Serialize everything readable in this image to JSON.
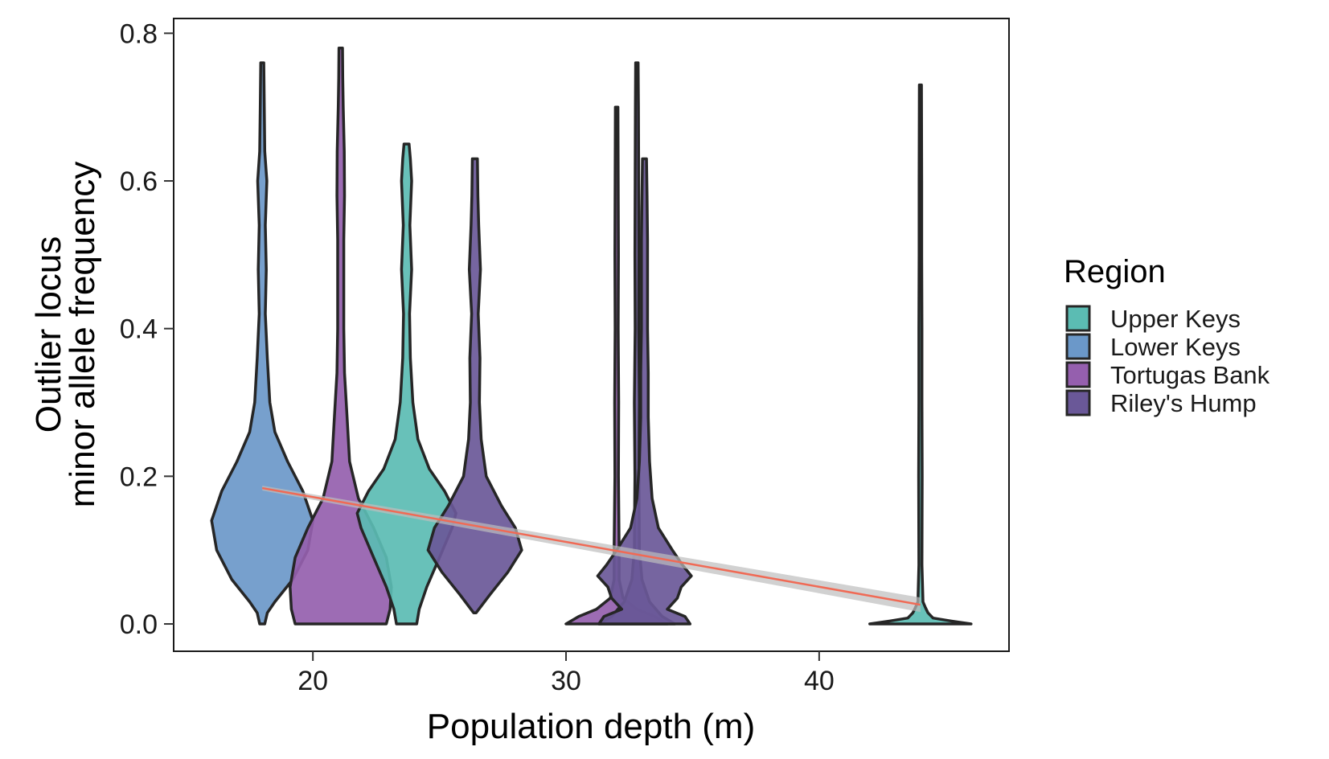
{
  "chart_data": {
    "type": "violin",
    "xlabel": "Population depth (m)",
    "ylabel_lines": [
      "Outlier locus",
      "minor allele frequency"
    ],
    "xlim": [
      14.5,
      47.5
    ],
    "ylim": [
      -0.037,
      0.82
    ],
    "x_ticks": [
      20,
      30,
      40
    ],
    "y_ticks": [
      0.0,
      0.2,
      0.4,
      0.6,
      0.8
    ],
    "y_tick_labels": [
      "0.0",
      "0.2",
      "0.4",
      "0.6",
      "0.8"
    ],
    "grid": false,
    "legend": {
      "title": "Region",
      "placement": "right",
      "entries": [
        {
          "label": "Upper Keys",
          "color": "#5bbcb3"
        },
        {
          "label": "Lower Keys",
          "color": "#6b98c9"
        },
        {
          "label": "Tortugas Bank",
          "color": "#955fae"
        },
        {
          "label": "Riley's Hump",
          "color": "#6a5898"
        }
      ]
    },
    "outline_color": "#262626",
    "violins": [
      {
        "region": "Lower Keys",
        "depth": 18,
        "profile": [
          [
            0,
            0.1
          ],
          [
            0.015,
            0.2
          ],
          [
            0.03,
            0.5
          ],
          [
            0.06,
            1.2
          ],
          [
            0.1,
            1.8
          ],
          [
            0.14,
            2.0
          ],
          [
            0.18,
            1.6
          ],
          [
            0.22,
            1.0
          ],
          [
            0.26,
            0.5
          ],
          [
            0.3,
            0.3
          ],
          [
            0.36,
            0.2
          ],
          [
            0.42,
            0.12
          ],
          [
            0.48,
            0.16
          ],
          [
            0.54,
            0.12
          ],
          [
            0.6,
            0.18
          ],
          [
            0.64,
            0.1
          ],
          [
            0.7,
            0.08
          ],
          [
            0.76,
            0.06
          ]
        ]
      },
      {
        "region": "Tortugas Bank",
        "depth": 21.1,
        "profile": [
          [
            0,
            1.8
          ],
          [
            0.02,
            1.95
          ],
          [
            0.05,
            2.0
          ],
          [
            0.09,
            1.8
          ],
          [
            0.13,
            1.3
          ],
          [
            0.17,
            0.7
          ],
          [
            0.22,
            0.35
          ],
          [
            0.28,
            0.25
          ],
          [
            0.34,
            0.15
          ],
          [
            0.4,
            0.12
          ],
          [
            0.46,
            0.12
          ],
          [
            0.52,
            0.12
          ],
          [
            0.58,
            0.15
          ],
          [
            0.64,
            0.14
          ],
          [
            0.7,
            0.1
          ],
          [
            0.74,
            0.08
          ],
          [
            0.78,
            0.07
          ]
        ]
      },
      {
        "region": "Upper Keys",
        "depth": 23.7,
        "profile": [
          [
            0,
            0.4
          ],
          [
            0.02,
            0.5
          ],
          [
            0.05,
            0.8
          ],
          [
            0.09,
            1.3
          ],
          [
            0.13,
            1.8
          ],
          [
            0.15,
            1.95
          ],
          [
            0.18,
            1.5
          ],
          [
            0.21,
            0.9
          ],
          [
            0.25,
            0.45
          ],
          [
            0.3,
            0.25
          ],
          [
            0.36,
            0.15
          ],
          [
            0.42,
            0.12
          ],
          [
            0.48,
            0.2
          ],
          [
            0.54,
            0.13
          ],
          [
            0.6,
            0.2
          ],
          [
            0.63,
            0.15
          ],
          [
            0.65,
            0.1
          ]
        ]
      },
      {
        "region": "Riley's Hump",
        "depth": 26.4,
        "profile": [
          [
            0.015,
            0.05
          ],
          [
            0.04,
            0.6
          ],
          [
            0.07,
            1.3
          ],
          [
            0.1,
            1.85
          ],
          [
            0.13,
            1.6
          ],
          [
            0.16,
            1.05
          ],
          [
            0.2,
            0.45
          ],
          [
            0.25,
            0.25
          ],
          [
            0.3,
            0.18
          ],
          [
            0.36,
            0.2
          ],
          [
            0.42,
            0.13
          ],
          [
            0.48,
            0.22
          ],
          [
            0.54,
            0.15
          ],
          [
            0.58,
            0.12
          ],
          [
            0.63,
            0.1
          ]
        ]
      },
      {
        "region": "Tortugas Bank",
        "depth": 32,
        "profile": [
          [
            0,
            2.0
          ],
          [
            0.01,
            1.5
          ],
          [
            0.02,
            0.8
          ],
          [
            0.035,
            0.25
          ],
          [
            0.06,
            0.1
          ],
          [
            0.1,
            0.1
          ],
          [
            0.2,
            0.07
          ],
          [
            0.3,
            0.08
          ],
          [
            0.4,
            0.06
          ],
          [
            0.5,
            0.07
          ],
          [
            0.6,
            0.06
          ],
          [
            0.7,
            0.05
          ]
        ]
      },
      {
        "region": "Riley's Hump",
        "depth": 32.8,
        "profile": [
          [
            0,
            1.5
          ],
          [
            0.01,
            1.0
          ],
          [
            0.03,
            0.5
          ],
          [
            0.06,
            0.2
          ],
          [
            0.1,
            0.1
          ],
          [
            0.2,
            0.08
          ],
          [
            0.3,
            0.1
          ],
          [
            0.4,
            0.07
          ],
          [
            0.5,
            0.08
          ],
          [
            0.6,
            0.07
          ],
          [
            0.7,
            0.06
          ],
          [
            0.76,
            0.05
          ]
        ]
      },
      {
        "region": "Riley's Hump",
        "depth": 33.1,
        "profile": [
          [
            0,
            1.8
          ],
          [
            0.01,
            1.6
          ],
          [
            0.02,
            0.9
          ],
          [
            0.035,
            1.3
          ],
          [
            0.05,
            1.45
          ],
          [
            0.065,
            1.85
          ],
          [
            0.08,
            1.5
          ],
          [
            0.1,
            1.1
          ],
          [
            0.13,
            0.55
          ],
          [
            0.17,
            0.3
          ],
          [
            0.22,
            0.2
          ],
          [
            0.28,
            0.15
          ],
          [
            0.34,
            0.15
          ],
          [
            0.4,
            0.12
          ],
          [
            0.46,
            0.12
          ],
          [
            0.52,
            0.12
          ],
          [
            0.58,
            0.1
          ],
          [
            0.63,
            0.08
          ]
        ]
      },
      {
        "region": "Upper Keys",
        "depth": 44,
        "profile": [
          [
            0,
            2.0
          ],
          [
            0.004,
            1.2
          ],
          [
            0.008,
            0.5
          ],
          [
            0.015,
            0.3
          ],
          [
            0.022,
            0.2
          ],
          [
            0.03,
            0.1
          ],
          [
            0.08,
            0.06
          ],
          [
            0.2,
            0.07
          ],
          [
            0.3,
            0.06
          ],
          [
            0.4,
            0.06
          ],
          [
            0.5,
            0.05
          ],
          [
            0.6,
            0.05
          ],
          [
            0.73,
            0.04
          ]
        ]
      }
    ],
    "trend_line": {
      "color": "#f06a55",
      "band_color": "#bdbdbd",
      "points": [
        {
          "x": 18,
          "y": 0.184
        },
        {
          "x": 44,
          "y": 0.026
        }
      ]
    }
  }
}
